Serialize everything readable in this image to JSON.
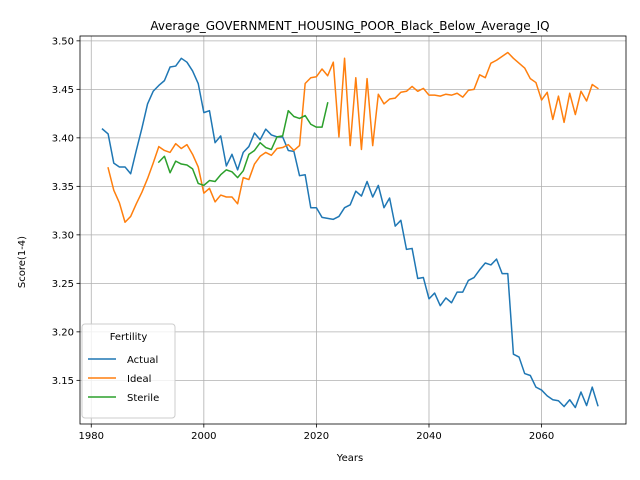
{
  "chart_data": {
    "type": "line",
    "title": "Average_GOVERNMENT_HOUSING_POOR_Black_Below_Average_IQ",
    "xlabel": "Years",
    "ylabel": "Score(1-4)",
    "xlim": [
      1978,
      2075
    ],
    "ylim": [
      3.105,
      3.505
    ],
    "xticks": [
      1980,
      2000,
      2020,
      2040,
      2060
    ],
    "yticks": [
      3.15,
      3.2,
      3.25,
      3.3,
      3.35,
      3.4,
      3.45,
      3.5
    ],
    "xtick_labels": [
      "1980",
      "2000",
      "2020",
      "2040",
      "2060"
    ],
    "ytick_labels": [
      "3.15",
      "3.20",
      "3.25",
      "3.30",
      "3.35",
      "3.40",
      "3.45",
      "3.50"
    ],
    "grid": true,
    "legend": {
      "title": "Fertility",
      "position": "lower-left"
    },
    "series": [
      {
        "name": "Actual",
        "color": "#1f77b4",
        "x_start": 1982,
        "values": [
          3.409,
          3.404,
          3.374,
          3.37,
          3.37,
          3.363,
          3.387,
          3.41,
          3.435,
          3.448,
          3.454,
          3.459,
          3.473,
          3.474,
          3.482,
          3.478,
          3.469,
          3.456,
          3.426,
          3.428,
          3.395,
          3.402,
          3.371,
          3.383,
          3.367,
          3.385,
          3.391,
          3.405,
          3.398,
          3.409,
          3.403,
          3.401,
          3.401,
          3.387,
          3.386,
          3.361,
          3.362,
          3.328,
          3.328,
          3.318,
          3.317,
          3.316,
          3.319,
          3.328,
          3.331,
          3.345,
          3.34,
          3.355,
          3.339,
          3.351,
          3.328,
          3.338,
          3.309,
          3.315,
          3.285,
          3.286,
          3.255,
          3.256,
          3.234,
          3.24,
          3.227,
          3.235,
          3.23,
          3.241,
          3.241,
          3.253,
          3.256,
          3.264,
          3.271,
          3.269,
          3.275,
          3.26,
          3.26,
          3.177,
          3.174,
          3.157,
          3.155,
          3.143,
          3.14,
          3.134,
          3.13,
          3.129,
          3.123,
          3.13,
          3.122,
          3.138,
          3.124,
          3.143,
          3.124
        ]
      },
      {
        "name": "Ideal",
        "color": "#ff7f0e",
        "x_start": 1983,
        "values": [
          3.369,
          3.346,
          3.333,
          3.313,
          3.319,
          3.332,
          3.344,
          3.358,
          3.374,
          3.391,
          3.387,
          3.385,
          3.394,
          3.389,
          3.393,
          3.383,
          3.37,
          3.343,
          3.348,
          3.334,
          3.341,
          3.339,
          3.339,
          3.332,
          3.359,
          3.357,
          3.373,
          3.381,
          3.385,
          3.382,
          3.389,
          3.39,
          3.393,
          3.387,
          3.392,
          3.456,
          3.462,
          3.463,
          3.471,
          3.464,
          3.478,
          3.401,
          3.482,
          3.392,
          3.462,
          3.388,
          3.461,
          3.392,
          3.445,
          3.435,
          3.44,
          3.441,
          3.447,
          3.448,
          3.453,
          3.448,
          3.451,
          3.444,
          3.444,
          3.443,
          3.445,
          3.444,
          3.446,
          3.442,
          3.449,
          3.45,
          3.465,
          3.462,
          3.477,
          3.48,
          3.484,
          3.488,
          3.482,
          3.477,
          3.472,
          3.461,
          3.457,
          3.439,
          3.447,
          3.419,
          3.443,
          3.416,
          3.446,
          3.424,
          3.448,
          3.438,
          3.455,
          3.451
        ]
      },
      {
        "name": "Sterile",
        "color": "#2ca02c",
        "x_start": 1992,
        "values": [
          3.375,
          3.381,
          3.364,
          3.376,
          3.373,
          3.372,
          3.368,
          3.353,
          3.351,
          3.356,
          3.355,
          3.362,
          3.367,
          3.365,
          3.359,
          3.366,
          3.383,
          3.387,
          3.395,
          3.39,
          3.388,
          3.401,
          3.402,
          3.428,
          3.422,
          3.42,
          3.423,
          3.414,
          3.411,
          3.411,
          3.436
        ]
      }
    ]
  }
}
